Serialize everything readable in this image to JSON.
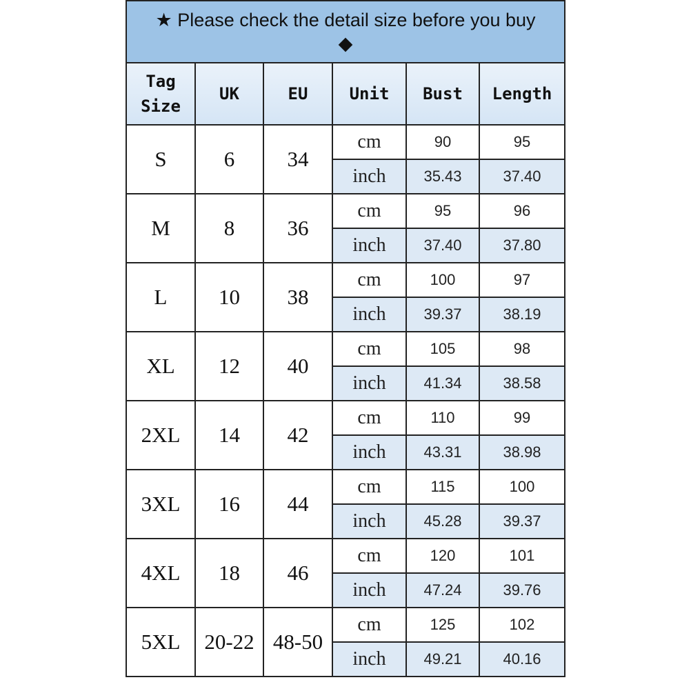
{
  "title": {
    "text": "★ Please check the detail size before you buy",
    "diamond": "◆"
  },
  "headers": {
    "tag_line1": "Tag",
    "tag_line2": "Size",
    "uk": "UK",
    "eu": "EU",
    "unit": "Unit",
    "bust": "Bust",
    "length": "Length"
  },
  "colors": {
    "title_bg": "#9dc3e6",
    "header_bg": "#dde9f5",
    "inch_row_bg": "#dde9f5"
  },
  "rows": [
    {
      "tag": "S",
      "uk": "6",
      "eu": "34",
      "cm_label": "cm",
      "inch_label": "inch",
      "bust_cm": "90",
      "length_cm": "95",
      "bust_inch": "35.43",
      "length_inch": "37.40"
    },
    {
      "tag": "M",
      "uk": "8",
      "eu": "36",
      "cm_label": "cm",
      "inch_label": "inch",
      "bust_cm": "95",
      "length_cm": "96",
      "bust_inch": "37.40",
      "length_inch": "37.80"
    },
    {
      "tag": "L",
      "uk": "10",
      "eu": "38",
      "cm_label": "cm",
      "inch_label": "inch",
      "bust_cm": "100",
      "length_cm": "97",
      "bust_inch": "39.37",
      "length_inch": "38.19"
    },
    {
      "tag": "XL",
      "uk": "12",
      "eu": "40",
      "cm_label": "cm",
      "inch_label": "inch",
      "bust_cm": "105",
      "length_cm": "98",
      "bust_inch": "41.34",
      "length_inch": "38.58"
    },
    {
      "tag": "2XL",
      "uk": "14",
      "eu": "42",
      "cm_label": "cm",
      "inch_label": "inch",
      "bust_cm": "110",
      "length_cm": "99",
      "bust_inch": "43.31",
      "length_inch": "38.98"
    },
    {
      "tag": "3XL",
      "uk": "16",
      "eu": "44",
      "cm_label": "cm",
      "inch_label": "inch",
      "bust_cm": "115",
      "length_cm": "100",
      "bust_inch": "45.28",
      "length_inch": "39.37"
    },
    {
      "tag": "4XL",
      "uk": "18",
      "eu": "46",
      "cm_label": "cm",
      "inch_label": "inch",
      "bust_cm": "120",
      "length_cm": "101",
      "bust_inch": "47.24",
      "length_inch": "39.76"
    },
    {
      "tag": "5XL",
      "uk": "20-22",
      "eu": "48-50",
      "cm_label": "cm",
      "inch_label": "inch",
      "bust_cm": "125",
      "length_cm": "102",
      "bust_inch": "49.21",
      "length_inch": "40.16"
    }
  ]
}
